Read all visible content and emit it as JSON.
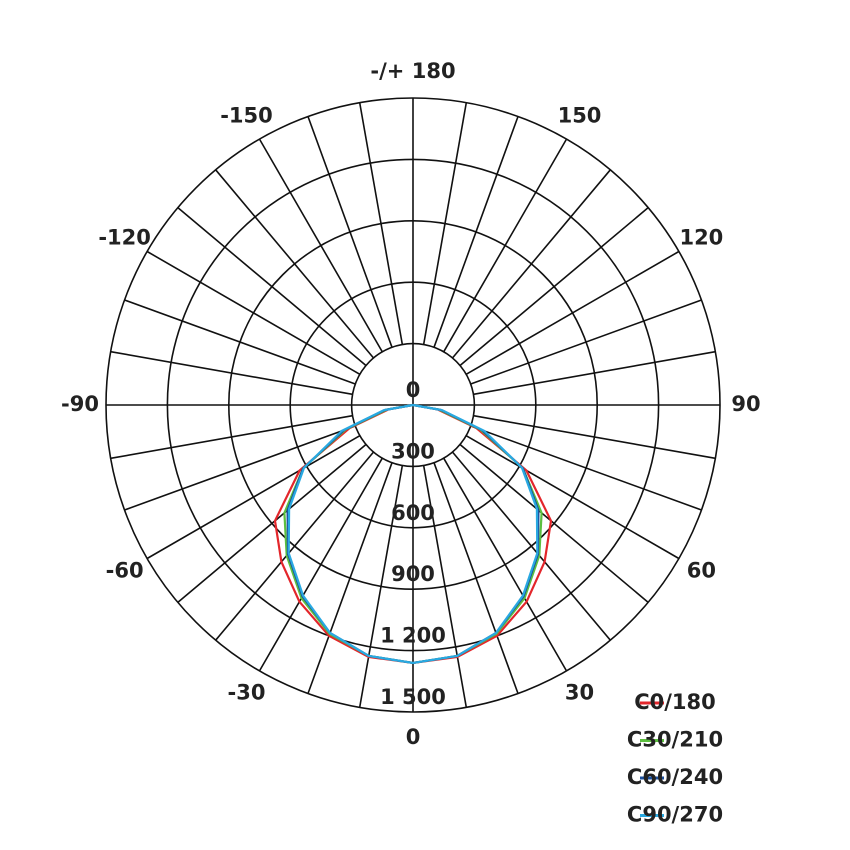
{
  "chart_data": {
    "type": "polar",
    "x": [
      -90,
      -80,
      -70,
      -60,
      -50,
      -40,
      -30,
      -20,
      -10,
      0,
      10,
      20,
      30,
      40,
      50,
      60,
      70,
      80,
      90
    ],
    "series": [
      {
        "name": "C0/180",
        "color": "#e3262b",
        "values": [
          0,
          120,
          330,
          640,
          880,
          1000,
          1110,
          1200,
          1250,
          1260,
          1250,
          1200,
          1110,
          1000,
          880,
          640,
          330,
          120,
          0
        ]
      },
      {
        "name": "C30/210",
        "color": "#5cbf3f",
        "values": [
          0,
          130,
          350,
          620,
          820,
          960,
          1090,
          1190,
          1245,
          1260,
          1245,
          1190,
          1090,
          960,
          820,
          620,
          350,
          130,
          0
        ]
      },
      {
        "name": "C60/240",
        "color": "#1b4f9c",
        "values": [
          0,
          140,
          360,
          620,
          800,
          950,
          1080,
          1185,
          1245,
          1260,
          1245,
          1185,
          1080,
          950,
          800,
          620,
          360,
          140,
          0
        ]
      },
      {
        "name": "C90/270",
        "color": "#29a9e1",
        "values": [
          0,
          145,
          370,
          615,
          790,
          945,
          1075,
          1185,
          1245,
          1260,
          1245,
          1185,
          1075,
          945,
          790,
          615,
          370,
          145,
          0
        ]
      }
    ],
    "rlim": [
      0,
      1500
    ],
    "rticks": [
      0,
      300,
      600,
      900,
      {
        "value": 1200,
        "label": "1 200"
      },
      {
        "value": 1500,
        "label": "1 500"
      }
    ],
    "xticks": [
      {
        "value": 180,
        "label": "-/+ 180"
      },
      150,
      120,
      90,
      60,
      30,
      0,
      -30,
      -60,
      -90,
      -120,
      -150
    ]
  }
}
